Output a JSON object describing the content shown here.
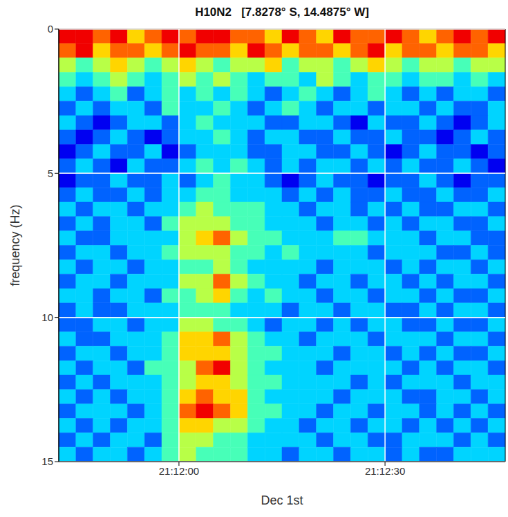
{
  "chart_data": {
    "type": "heatmap",
    "title": "H10N2   [7.8278° S, 14.4875° W]",
    "x_label": "Dec 1st",
    "y_label": "frequency (Hz)",
    "x_bins": [
      -17.5,
      -15,
      -12.5,
      -10,
      -7.5,
      -5,
      -2.5,
      0,
      2.5,
      5,
      7.5,
      10,
      12.5,
      15,
      17.5,
      20,
      22.5,
      25,
      27.5,
      30,
      32.5,
      35,
      37.5,
      40,
      42.5,
      45,
      47.5
    ],
    "y_bins": [
      0,
      0.5,
      1,
      1.5,
      2,
      2.5,
      3,
      3.5,
      4,
      4.5,
      5,
      5.5,
      6,
      6.5,
      7,
      7.5,
      8,
      8.5,
      9,
      9.5,
      10,
      10.5,
      11,
      11.5,
      12,
      12.5,
      13,
      13.5,
      14,
      14.5,
      15
    ],
    "xlim": [
      -17.5,
      47.5
    ],
    "ylim": [
      0,
      15
    ],
    "xticks": [
      {
        "value": 0,
        "label": "21:12:00"
      },
      {
        "value": 30,
        "label": "21:12:30"
      }
    ],
    "yticks": [
      0,
      5,
      10,
      15
    ],
    "zlim": [
      0,
      9
    ],
    "grid": true,
    "cells": [
      [
        8,
        8,
        7,
        8,
        6,
        7,
        8,
        7,
        8,
        8,
        7,
        7,
        6,
        8,
        7,
        6,
        8,
        7,
        7,
        8,
        7,
        6,
        7,
        8,
        7,
        8
      ],
      [
        7,
        8,
        6,
        7,
        7,
        6,
        7,
        8,
        7,
        7,
        6,
        8,
        7,
        6,
        7,
        7,
        6,
        7,
        8,
        6,
        7,
        7,
        6,
        7,
        7,
        6
      ],
      [
        5,
        4,
        5,
        6,
        5,
        4,
        5,
        6,
        5,
        4,
        5,
        5,
        6,
        4,
        5,
        5,
        4,
        5,
        6,
        5,
        4,
        5,
        5,
        4,
        5,
        5
      ],
      [
        4,
        3,
        4,
        5,
        4,
        3,
        4,
        5,
        4,
        5,
        4,
        3,
        4,
        4,
        3,
        5,
        4,
        3,
        4,
        4,
        3,
        4,
        4,
        3,
        4,
        3
      ],
      [
        3,
        2,
        3,
        4,
        2,
        3,
        4,
        3,
        4,
        3,
        4,
        3,
        2,
        3,
        4,
        3,
        2,
        3,
        4,
        3,
        2,
        3,
        2,
        3,
        3,
        2
      ],
      [
        2,
        3,
        2,
        3,
        3,
        2,
        4,
        3,
        3,
        4,
        3,
        2,
        3,
        4,
        3,
        2,
        3,
        3,
        2,
        3,
        3,
        2,
        3,
        2,
        2,
        3
      ],
      [
        3,
        2,
        1,
        2,
        3,
        3,
        2,
        3,
        4,
        3,
        3,
        3,
        2,
        2,
        3,
        3,
        2,
        1,
        3,
        2,
        2,
        3,
        2,
        1,
        2,
        3
      ],
      [
        2,
        1,
        2,
        3,
        2,
        1,
        2,
        3,
        3,
        4,
        3,
        2,
        3,
        3,
        2,
        2,
        3,
        2,
        2,
        3,
        2,
        2,
        1,
        2,
        3,
        2
      ],
      [
        1,
        2,
        3,
        2,
        2,
        3,
        1,
        2,
        3,
        3,
        3,
        2,
        2,
        3,
        3,
        2,
        2,
        3,
        2,
        1,
        2,
        3,
        2,
        2,
        1,
        2
      ],
      [
        2,
        3,
        2,
        1,
        3,
        2,
        2,
        3,
        4,
        3,
        4,
        3,
        2,
        3,
        2,
        3,
        3,
        2,
        3,
        2,
        3,
        2,
        2,
        3,
        2,
        1
      ],
      [
        1,
        2,
        2,
        3,
        2,
        2,
        3,
        2,
        3,
        4,
        3,
        3,
        2,
        1,
        2,
        3,
        2,
        2,
        1,
        2,
        2,
        3,
        2,
        1,
        2,
        2
      ],
      [
        2,
        3,
        2,
        2,
        3,
        2,
        3,
        3,
        4,
        4,
        3,
        3,
        3,
        2,
        3,
        2,
        3,
        2,
        2,
        3,
        2,
        2,
        3,
        2,
        2,
        3
      ],
      [
        3,
        2,
        3,
        3,
        2,
        3,
        3,
        4,
        5,
        4,
        4,
        4,
        3,
        3,
        2,
        3,
        3,
        2,
        3,
        2,
        3,
        2,
        2,
        3,
        3,
        2
      ],
      [
        2,
        3,
        2,
        3,
        3,
        2,
        4,
        5,
        5,
        5,
        4,
        4,
        3,
        3,
        3,
        2,
        3,
        3,
        2,
        3,
        2,
        3,
        3,
        2,
        2,
        3
      ],
      [
        3,
        2,
        2,
        3,
        3,
        3,
        3,
        5,
        6,
        7,
        5,
        4,
        4,
        3,
        3,
        3,
        4,
        4,
        3,
        3,
        3,
        2,
        3,
        3,
        2,
        2
      ],
      [
        2,
        3,
        3,
        2,
        3,
        3,
        4,
        5,
        5,
        5,
        4,
        4,
        3,
        4,
        3,
        3,
        3,
        3,
        2,
        3,
        3,
        3,
        2,
        2,
        3,
        2
      ],
      [
        3,
        2,
        3,
        3,
        2,
        3,
        3,
        4,
        4,
        5,
        4,
        3,
        3,
        3,
        3,
        2,
        3,
        3,
        3,
        2,
        3,
        2,
        3,
        3,
        2,
        3
      ],
      [
        2,
        3,
        3,
        2,
        3,
        3,
        3,
        5,
        5,
        7,
        5,
        4,
        3,
        3,
        2,
        3,
        3,
        2,
        3,
        3,
        2,
        3,
        2,
        3,
        3,
        2
      ],
      [
        3,
        3,
        2,
        3,
        3,
        2,
        4,
        4,
        5,
        6,
        4,
        3,
        4,
        3,
        3,
        2,
        3,
        3,
        2,
        3,
        3,
        2,
        3,
        2,
        2,
        3
      ],
      [
        2,
        3,
        2,
        2,
        3,
        3,
        3,
        4,
        4,
        4,
        3,
        3,
        3,
        2,
        3,
        3,
        2,
        3,
        3,
        2,
        2,
        3,
        2,
        3,
        3,
        2
      ],
      [
        2,
        2,
        3,
        3,
        2,
        3,
        3,
        5,
        5,
        4,
        4,
        3,
        2,
        3,
        3,
        2,
        3,
        2,
        3,
        3,
        2,
        2,
        3,
        2,
        2,
        3
      ],
      [
        3,
        2,
        2,
        3,
        3,
        3,
        4,
        6,
        6,
        7,
        5,
        4,
        3,
        3,
        2,
        3,
        3,
        3,
        2,
        3,
        3,
        3,
        2,
        3,
        3,
        2
      ],
      [
        2,
        3,
        3,
        2,
        3,
        3,
        4,
        6,
        6,
        6,
        5,
        4,
        4,
        3,
        3,
        3,
        2,
        3,
        3,
        2,
        3,
        2,
        3,
        2,
        2,
        3
      ],
      [
        3,
        2,
        3,
        3,
        2,
        4,
        4,
        5,
        7,
        8,
        5,
        4,
        3,
        3,
        3,
        2,
        3,
        3,
        3,
        3,
        2,
        3,
        2,
        3,
        3,
        2
      ],
      [
        2,
        3,
        2,
        3,
        3,
        3,
        4,
        5,
        6,
        6,
        5,
        4,
        4,
        3,
        3,
        3,
        3,
        2,
        3,
        2,
        3,
        3,
        3,
        2,
        3,
        3
      ],
      [
        3,
        2,
        3,
        2,
        3,
        3,
        4,
        6,
        7,
        6,
        6,
        4,
        3,
        3,
        3,
        3,
        2,
        3,
        3,
        3,
        2,
        2,
        3,
        3,
        2,
        3
      ],
      [
        2,
        3,
        3,
        3,
        2,
        3,
        4,
        7,
        8,
        7,
        6,
        4,
        4,
        3,
        3,
        2,
        3,
        3,
        2,
        3,
        3,
        2,
        3,
        2,
        3,
        2
      ],
      [
        3,
        2,
        3,
        2,
        3,
        3,
        4,
        6,
        6,
        5,
        5,
        4,
        3,
        3,
        2,
        3,
        3,
        2,
        3,
        3,
        2,
        3,
        2,
        3,
        2,
        3
      ],
      [
        2,
        3,
        2,
        3,
        3,
        2,
        4,
        5,
        5,
        4,
        4,
        3,
        3,
        3,
        3,
        2,
        3,
        3,
        2,
        2,
        3,
        3,
        3,
        2,
        3,
        2
      ],
      [
        3,
        2,
        3,
        3,
        2,
        3,
        4,
        5,
        4,
        4,
        4,
        3,
        3,
        2,
        3,
        3,
        2,
        3,
        3,
        2,
        3,
        2,
        2,
        3,
        3,
        3
      ]
    ]
  }
}
